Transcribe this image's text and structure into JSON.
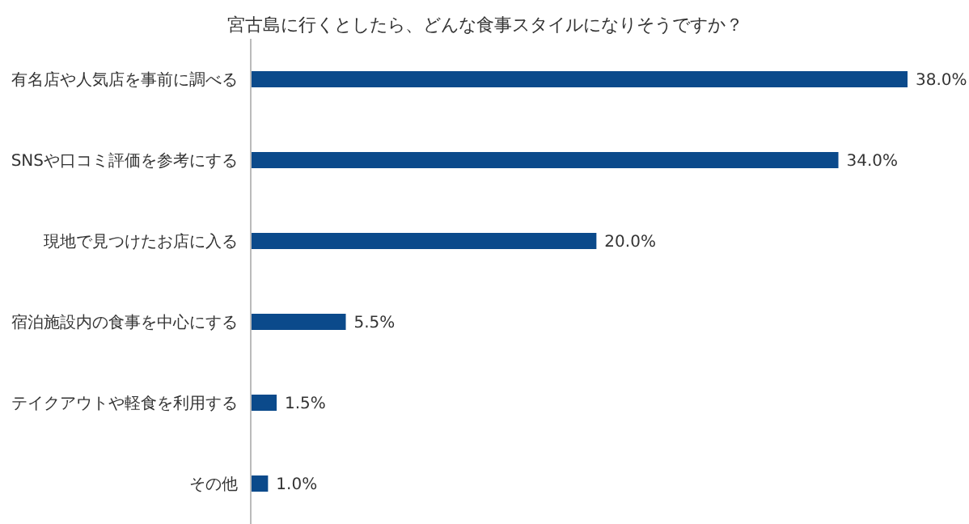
{
  "chart_data": {
    "type": "bar",
    "orientation": "horizontal",
    "title": "宮古島に行くとしたら、どんな食事スタイルになりそうですか？",
    "categories": [
      "有名店や人気店を事前に調べる",
      "SNSや口コミ評価を参考にする",
      "現地で見つけたお店に入る",
      "宿泊施設内の食事を中心にする",
      "テイクアウトや軽食を利用する",
      "その他"
    ],
    "values": [
      38.0,
      34.0,
      20.0,
      5.5,
      1.5,
      1.0
    ],
    "value_labels": [
      "38.0%",
      "34.0%",
      "20.0%",
      "5.5%",
      "1.5%",
      "1.0%"
    ],
    "color": "#0b4a8b"
  }
}
